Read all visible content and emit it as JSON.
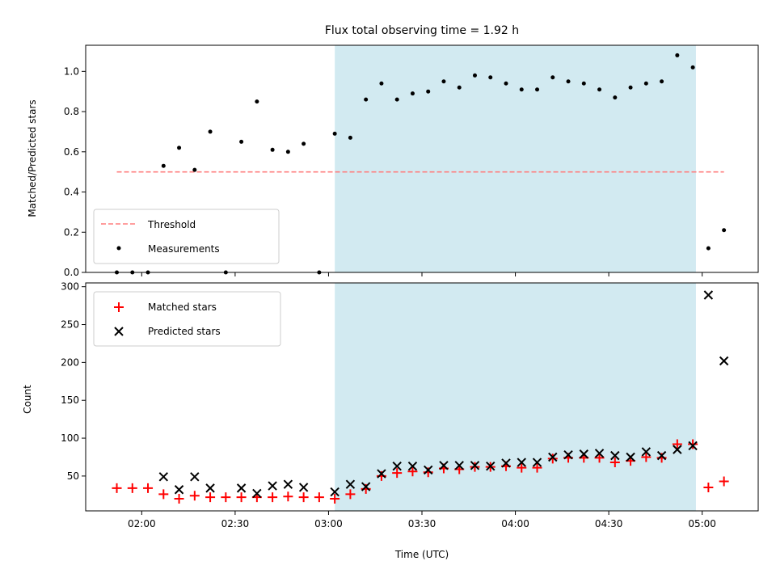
{
  "chart_data": {
    "type": "scatter",
    "title": "Flux total observing time = 1.92 h",
    "shaded_region": {
      "x": [
        "03:02",
        "04:58"
      ],
      "color": "#add8e6"
    },
    "x_axis": {
      "label": "Time (UTC)",
      "range": [
        "01:42",
        "05:18"
      ],
      "tick_labels": [
        "02:00",
        "02:30",
        "03:00",
        "03:30",
        "04:00",
        "04:30",
        "05:00"
      ]
    },
    "colors": {
      "threshold": "#ff7f7f",
      "measurements": "#000000",
      "matched": "#ff0000",
      "predicted": "#000000",
      "shade": "#add8e6"
    },
    "panels": [
      {
        "ylabel": "Matched/Predicted stars",
        "ylim": [
          0,
          1.13
        ],
        "ytick_labels": [
          "0.0",
          "0.2",
          "0.4",
          "0.6",
          "0.8",
          "1.0"
        ],
        "legend": {
          "position": "lower left"
        },
        "series": [
          {
            "name": "Threshold",
            "kind": "dashed-line",
            "color": "#ff7f7f",
            "x": [
              "01:52",
              "05:07"
            ],
            "y": [
              0.5,
              0.5
            ]
          },
          {
            "name": "Measurements",
            "kind": "points",
            "color": "#000000",
            "x": [
              "01:52",
              "01:57",
              "02:02",
              "02:07",
              "02:12",
              "02:17",
              "02:22",
              "02:27",
              "02:32",
              "02:37",
              "02:42",
              "02:47",
              "02:52",
              "02:57",
              "03:02",
              "03:07",
              "03:12",
              "03:17",
              "03:22",
              "03:27",
              "03:32",
              "03:37",
              "03:42",
              "03:47",
              "03:52",
              "03:57",
              "04:02",
              "04:07",
              "04:12",
              "04:17",
              "04:22",
              "04:27",
              "04:32",
              "04:37",
              "04:42",
              "04:47",
              "04:52",
              "04:57",
              "05:02",
              "05:07"
            ],
            "y": [
              0,
              0,
              0,
              0.53,
              0.62,
              0.51,
              0.7,
              0,
              0.65,
              0.85,
              0.61,
              0.6,
              0.64,
              0,
              0.69,
              0.67,
              0.86,
              0.94,
              0.86,
              0.89,
              0.9,
              0.95,
              0.92,
              0.98,
              0.97,
              0.94,
              0.91,
              0.91,
              0.97,
              0.95,
              0.94,
              0.91,
              0.87,
              0.92,
              0.94,
              0.95,
              1.08,
              1.02,
              0.12,
              0.21
            ]
          }
        ]
      },
      {
        "ylabel": "Count",
        "ylim": [
          4,
          305
        ],
        "ytick_labels": [
          "50",
          "100",
          "150",
          "200",
          "250",
          "300"
        ],
        "legend": {
          "position": "upper left"
        },
        "series": [
          {
            "name": "Matched stars",
            "marker": "plus",
            "color": "#ff0000",
            "x": [
              "01:52",
              "01:57",
              "02:02",
              "02:07",
              "02:12",
              "02:17",
              "02:22",
              "02:27",
              "02:32",
              "02:37",
              "02:42",
              "02:47",
              "02:52",
              "02:57",
              "03:02",
              "03:07",
              "03:12",
              "03:17",
              "03:22",
              "03:27",
              "03:32",
              "03:37",
              "03:42",
              "03:47",
              "03:52",
              "03:57",
              "04:02",
              "04:07",
              "04:12",
              "04:17",
              "04:22",
              "04:27",
              "04:32",
              "04:37",
              "04:42",
              "04:47",
              "04:52",
              "04:57",
              "05:02",
              "05:07"
            ],
            "y": [
              34,
              34,
              34,
              26,
              20,
              24,
              22,
              22,
              22,
              22,
              22,
              23,
              22,
              22,
              20,
              26,
              33,
              50,
              54,
              56,
              55,
              60,
              59,
              62,
              62,
              63,
              61,
              61,
              73,
              74,
              74,
              74,
              68,
              70,
              75,
              74,
              92,
              92,
              35,
              43
            ]
          },
          {
            "name": "Predicted stars",
            "marker": "x",
            "color": "#000000",
            "x": [
              "02:07",
              "02:12",
              "02:17",
              "02:22",
              "02:32",
              "02:37",
              "02:42",
              "02:47",
              "02:52",
              "03:02",
              "03:07",
              "03:12",
              "03:17",
              "03:22",
              "03:27",
              "03:32",
              "03:37",
              "03:42",
              "03:47",
              "03:52",
              "03:57",
              "04:02",
              "04:07",
              "04:12",
              "04:17",
              "04:22",
              "04:27",
              "04:32",
              "04:37",
              "04:42",
              "04:47",
              "04:52",
              "04:57",
              "05:02",
              "05:07"
            ],
            "y": [
              49,
              32,
              49,
              34,
              34,
              27,
              37,
              39,
              35,
              29,
              39,
              36,
              53,
              63,
              63,
              58,
              64,
              64,
              64,
              63,
              67,
              68,
              68,
              75,
              78,
              79,
              80,
              77,
              75,
              82,
              77,
              85,
              90,
              289,
              202
            ]
          }
        ]
      }
    ]
  }
}
